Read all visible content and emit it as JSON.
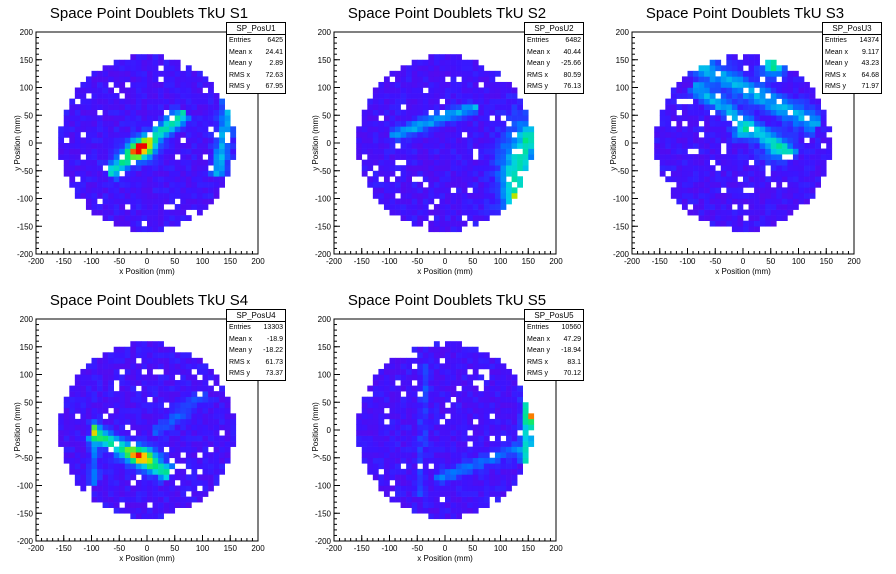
{
  "figure": {
    "panels": [
      {
        "title": "Space Point Doublets TkU S1",
        "stats": {
          "name": "SP_PosU1",
          "rows": [
            {
              "label": "Entries",
              "value": "6425"
            },
            {
              "label": "Mean x",
              "value": "24.41"
            },
            {
              "label": "Mean y",
              "value": "2.89"
            },
            {
              "label": "RMS x",
              "value": "72.63"
            },
            {
              "label": "RMS y",
              "value": "67.95"
            }
          ]
        }
      },
      {
        "title": "Space Point Doublets TkU S2",
        "stats": {
          "name": "SP_PosU2",
          "rows": [
            {
              "label": "Entries",
              "value": "6482"
            },
            {
              "label": "Mean x",
              "value": "40.44"
            },
            {
              "label": "Mean y",
              "value": "-25.66"
            },
            {
              "label": "RMS x",
              "value": "80.59"
            },
            {
              "label": "RMS y",
              "value": "76.13"
            }
          ]
        }
      },
      {
        "title": "Space Point Doublets TkU S3",
        "stats": {
          "name": "SP_PosU3",
          "rows": [
            {
              "label": "Entries",
              "value": "14374"
            },
            {
              "label": "Mean x",
              "value": "9.117"
            },
            {
              "label": "Mean y",
              "value": "43.23"
            },
            {
              "label": "RMS x",
              "value": "64.68"
            },
            {
              "label": "RMS y",
              "value": "71.97"
            }
          ]
        }
      },
      {
        "title": "Space Point Doublets TkU S4",
        "stats": {
          "name": "SP_PosU4",
          "rows": [
            {
              "label": "Entries",
              "value": "13303"
            },
            {
              "label": "Mean x",
              "value": "-18.9"
            },
            {
              "label": "Mean y",
              "value": "-18.22"
            },
            {
              "label": "RMS x",
              "value": "61.73"
            },
            {
              "label": "RMS y",
              "value": "73.37"
            }
          ]
        }
      },
      {
        "title": "Space Point Doublets TkU S5",
        "stats": {
          "name": "SP_PosU5",
          "rows": [
            {
              "label": "Entries",
              "value": "10560"
            },
            {
              "label": "Mean x",
              "value": "47.29"
            },
            {
              "label": "Mean y",
              "value": "-18.94"
            },
            {
              "label": "RMS x",
              "value": "83.1"
            },
            {
              "label": "RMS y",
              "value": "70.12"
            }
          ]
        }
      }
    ]
  },
  "chart_data": [
    {
      "type": "heatmap",
      "title": "Space Point Doublets TkU S1",
      "xlabel": "x Position (mm)",
      "ylabel": "y Position (mm)",
      "xlim": [
        -200,
        200
      ],
      "ylim": [
        -200,
        200
      ],
      "xticks": [
        -200,
        -150,
        -100,
        -50,
        0,
        50,
        100,
        150,
        200
      ],
      "yticks": [
        -200,
        -150,
        -100,
        -50,
        0,
        50,
        100,
        150,
        200
      ],
      "hotspots": [
        {
          "x": -10,
          "y": -10,
          "level": "high"
        },
        {
          "x": 20,
          "y": 25,
          "level": "medium"
        },
        {
          "x": 140,
          "y": 40,
          "level": "medium"
        }
      ]
    },
    {
      "type": "heatmap",
      "title": "Space Point Doublets TkU S2",
      "xlabel": "x Position (mm)",
      "ylabel": "y Position (mm)",
      "xlim": [
        -200,
        200
      ],
      "ylim": [
        -200,
        200
      ],
      "xticks": [
        -200,
        -150,
        -100,
        -50,
        0,
        50,
        100,
        150,
        200
      ],
      "yticks": [
        -200,
        -150,
        -100,
        -50,
        0,
        50,
        100,
        150,
        200
      ],
      "hotspots": [
        {
          "x": 130,
          "y": -100,
          "level": "high"
        },
        {
          "x": 145,
          "y": 0,
          "level": "high"
        },
        {
          "x": 110,
          "y": -50,
          "level": "medium"
        }
      ]
    },
    {
      "type": "heatmap",
      "title": "Space Point Doublets TkU S3",
      "xlabel": "x Position (mm)",
      "ylabel": "y Position (mm)",
      "xlim": [
        -200,
        200
      ],
      "ylim": [
        -200,
        200
      ],
      "xticks": [
        -200,
        -150,
        -100,
        -50,
        0,
        50,
        100,
        150,
        200
      ],
      "yticks": [
        -200,
        -150,
        -100,
        -50,
        0,
        50,
        100,
        150,
        200
      ],
      "hotspots": [
        {
          "x": 50,
          "y": 140,
          "level": "high"
        },
        {
          "x": 0,
          "y": 20,
          "level": "medium"
        },
        {
          "x": -30,
          "y": 100,
          "level": "medium"
        }
      ]
    },
    {
      "type": "heatmap",
      "title": "Space Point Doublets TkU S4",
      "xlabel": "x Position (mm)",
      "ylabel": "y Position (mm)",
      "xlim": [
        -200,
        200
      ],
      "ylim": [
        -200,
        200
      ],
      "xticks": [
        -200,
        -150,
        -100,
        -50,
        0,
        50,
        100,
        150,
        200
      ],
      "yticks": [
        -200,
        -150,
        -100,
        -50,
        0,
        50,
        100,
        150,
        200
      ],
      "hotspots": [
        {
          "x": -10,
          "y": -40,
          "level": "high"
        },
        {
          "x": -50,
          "y": -15,
          "level": "medium"
        }
      ]
    },
    {
      "type": "heatmap",
      "title": "Space Point Doublets TkU S5",
      "xlabel": "x Position (mm)",
      "ylabel": "y Position (mm)",
      "xlim": [
        -200,
        200
      ],
      "ylim": [
        -200,
        200
      ],
      "xticks": [
        -200,
        -150,
        -100,
        -50,
        0,
        50,
        100,
        150,
        200
      ],
      "yticks": [
        -200,
        -150,
        -100,
        -50,
        0,
        50,
        100,
        150,
        200
      ],
      "hotspots": [
        {
          "x": 150,
          "y": 20,
          "level": "high"
        },
        {
          "x": 130,
          "y": -40,
          "level": "medium"
        }
      ]
    }
  ]
}
